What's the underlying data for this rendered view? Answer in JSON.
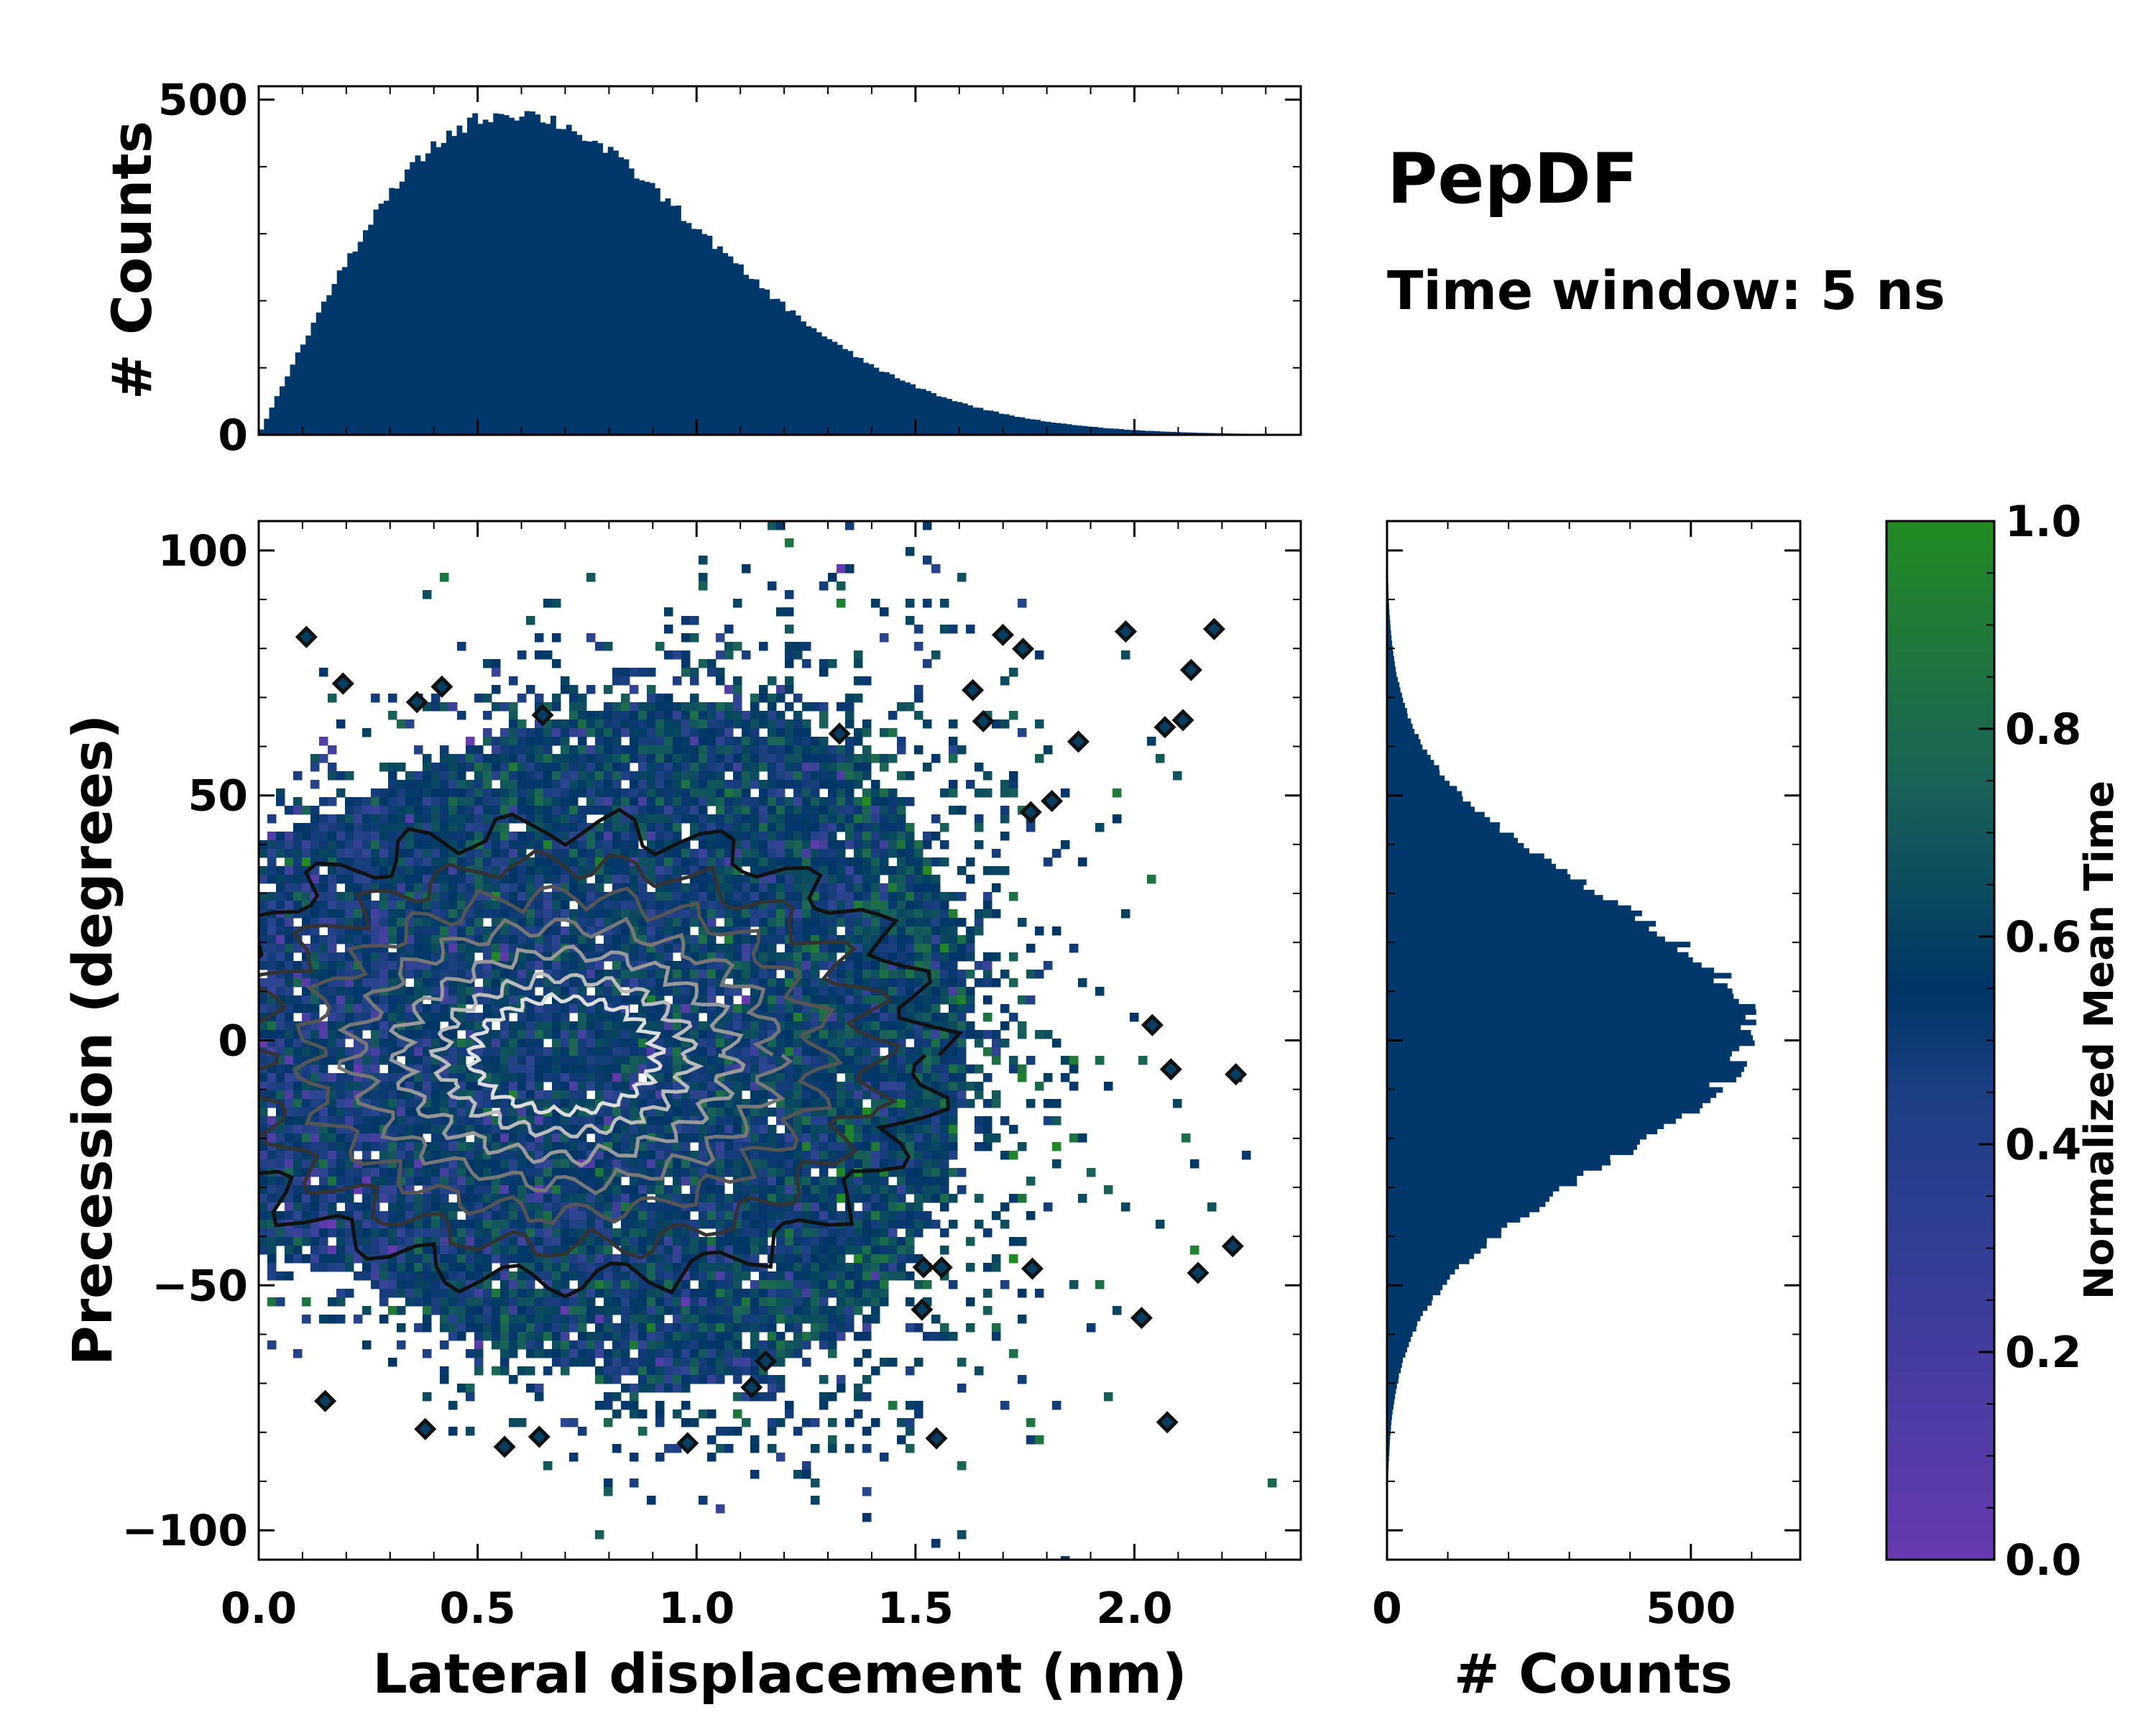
{
  "chart_data": {
    "type": "heatmap",
    "title": "PepDF",
    "subtitle": "Time window: 5 ns",
    "xlabel": "Lateral displacement (nm)",
    "ylabel": "Precession (degrees)",
    "xlim": [
      0.0,
      2.38
    ],
    "ylim": [
      -106,
      106
    ],
    "x_ticks": [
      0.0,
      0.5,
      1.0,
      1.5,
      2.0
    ],
    "x_tick_labels": [
      "0.0",
      "0.5",
      "1.0",
      "1.5",
      "2.0"
    ],
    "y_ticks": [
      100,
      50,
      0,
      -50,
      -100
    ],
    "y_tick_labels": [
      "100",
      "50",
      "0",
      "−50",
      "−100"
    ],
    "grid": false,
    "density": {
      "x_center": 0.62,
      "y_center": 0.0,
      "x_spread": 0.42,
      "y_spread": 22,
      "total_counts": 40000
    },
    "top_histogram": {
      "ylabel": "# Counts",
      "ylim": [
        0,
        520
      ],
      "y_ticks": [
        0,
        500
      ],
      "y_tick_labels": [
        "0",
        "500"
      ],
      "bins": 200,
      "peak_count": 480,
      "peak_x": 0.58
    },
    "right_histogram": {
      "xlabel": "# Counts",
      "xlim": [
        0,
        680
      ],
      "x_ticks": [
        0,
        500
      ],
      "x_tick_labels": [
        "0",
        "500"
      ],
      "bins": 200,
      "peak_count": 600,
      "peak_y": 2
    },
    "colorbar": {
      "label": "Normalized Mean Time",
      "range": [
        0.0,
        1.0
      ],
      "ticks": [
        0.0,
        0.2,
        0.4,
        0.6,
        0.8,
        1.0
      ],
      "tick_labels": [
        "0.0",
        "0.2",
        "0.4",
        "0.6",
        "0.8",
        "1.0"
      ],
      "colors": [
        "#673ab0",
        "#2c4590",
        "#003566",
        "#1a6357",
        "#228b22"
      ]
    },
    "histogram_color": "#00386b",
    "contour_colors": [
      "#111111",
      "#333333",
      "#555555",
      "#777777",
      "#999999",
      "#bbbbbb",
      "#dddddd"
    ]
  }
}
